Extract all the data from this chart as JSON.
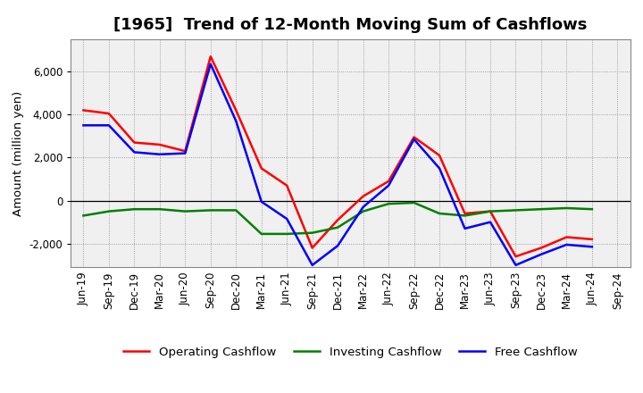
{
  "title": "[1965]  Trend of 12-Month Moving Sum of Cashflows",
  "ylabel": "Amount (million yen)",
  "x_labels": [
    "Jun-19",
    "Sep-19",
    "Dec-19",
    "Mar-20",
    "Jun-20",
    "Sep-20",
    "Dec-20",
    "Mar-21",
    "Jun-21",
    "Sep-21",
    "Dec-21",
    "Mar-22",
    "Jun-22",
    "Sep-22",
    "Dec-22",
    "Mar-23",
    "Jun-23",
    "Sep-23",
    "Dec-23",
    "Mar-24",
    "Jun-24",
    "Sep-24"
  ],
  "operating": [
    4200,
    4050,
    2700,
    2600,
    2300,
    6700,
    4200,
    1500,
    700,
    -2200,
    -900,
    200,
    900,
    2950,
    2100,
    -600,
    -500,
    -2600,
    -2200,
    -1700,
    -1800,
    null
  ],
  "investing": [
    -700,
    -500,
    -400,
    -400,
    -500,
    -450,
    -450,
    -1550,
    -1550,
    -1500,
    -1250,
    -500,
    -150,
    -100,
    -600,
    -700,
    -500,
    -450,
    -400,
    -350,
    -400,
    null
  ],
  "free": [
    3500,
    3500,
    2250,
    2150,
    2200,
    6350,
    3700,
    -50,
    -850,
    -3000,
    -2100,
    -300,
    700,
    2850,
    1500,
    -1300,
    -1000,
    -3000,
    -2500,
    -2050,
    -2150,
    null
  ],
  "operating_color": "#ff0000",
  "investing_color": "#008000",
  "free_color": "#0000ff",
  "ylim": [
    -3100,
    7500
  ],
  "yticks": [
    -2000,
    0,
    2000,
    4000,
    6000
  ],
  "plot_bg_color": "#f0f0f0",
  "background_color": "#ffffff",
  "grid_color": "#888888",
  "title_fontsize": 13,
  "axis_fontsize": 8.5,
  "legend_fontsize": 9.5,
  "linewidth": 1.8
}
